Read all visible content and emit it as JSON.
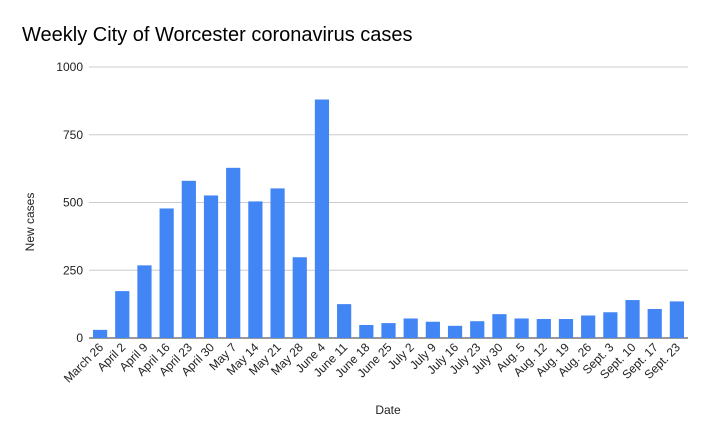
{
  "chart_data": {
    "type": "bar",
    "title": "Weekly City of Worcester coronavirus cases",
    "xlabel": "Date",
    "ylabel": "New cases",
    "ylim": [
      0,
      1000
    ],
    "yticks": [
      "0",
      "250",
      "500",
      "750",
      "1000"
    ],
    "grid": true,
    "bar_color": "#4285f4",
    "categories": [
      "March 26",
      "April 2",
      "April 9",
      "April 16",
      "April 23",
      "April 30",
      "May 7",
      "May 14",
      "May 21",
      "May 28",
      "June 4",
      "June 11",
      "June 18",
      "June 25",
      "July 2",
      "July 9",
      "July 16",
      "July 23",
      "July 30",
      "Aug. 5",
      "Aug. 12",
      "Aug. 19",
      "Aug. 26",
      "Sept. 3",
      "Sept. 10",
      "Sept. 17",
      "Sept. 23"
    ],
    "values": [
      30,
      173,
      268,
      478,
      580,
      526,
      628,
      504,
      552,
      298,
      880,
      125,
      48,
      55,
      72,
      60,
      45,
      62,
      88,
      72,
      70,
      70,
      83,
      95,
      140,
      107,
      135
    ]
  }
}
